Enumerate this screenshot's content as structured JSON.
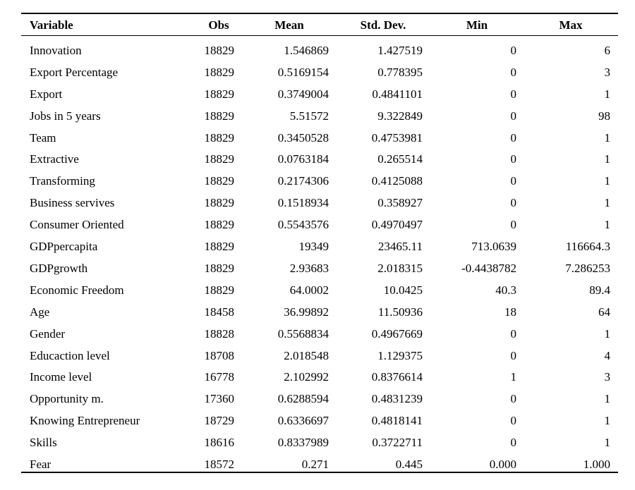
{
  "table": {
    "columns": [
      "Variable",
      "Obs",
      "Mean",
      "Std. Dev.",
      "Min",
      "Max"
    ],
    "rows": [
      [
        "Innovation",
        "18829",
        "1.546869",
        "1.427519",
        "0",
        "6"
      ],
      [
        "Export Percentage",
        "18829",
        "0.5169154",
        "0.778395",
        "0",
        "3"
      ],
      [
        "Export",
        "18829",
        "0.3749004",
        "0.4841101",
        "0",
        "1"
      ],
      [
        "Jobs in 5 years",
        "18829",
        "5.51572",
        "9.322849",
        "0",
        "98"
      ],
      [
        "Team",
        "18829",
        "0.3450528",
        "0.4753981",
        "0",
        "1"
      ],
      [
        "Extractive",
        "18829",
        "0.0763184",
        "0.265514",
        "0",
        "1"
      ],
      [
        "Transforming",
        "18829",
        "0.2174306",
        "0.4125088",
        "0",
        "1"
      ],
      [
        "Business servives",
        "18829",
        "0.1518934",
        "0.358927",
        "0",
        "1"
      ],
      [
        "Consumer Oriented",
        "18829",
        "0.5543576",
        "0.4970497",
        "0",
        "1"
      ],
      [
        "GDPpercapita",
        "18829",
        "19349",
        "23465.11",
        "713.0639",
        "116664.3"
      ],
      [
        "GDPgrowth",
        "18829",
        "2.93683",
        "2.018315",
        "-0.4438782",
        "7.286253"
      ],
      [
        "Economic Freedom",
        "18829",
        "64.0002",
        "10.0425",
        "40.3",
        "89.4"
      ],
      [
        "Age",
        "18458",
        "36.99892",
        "11.50936",
        "18",
        "64"
      ],
      [
        "Gender",
        "18828",
        "0.5568834",
        "0.4967669",
        "0",
        "1"
      ],
      [
        "Educaction level",
        "18708",
        "2.018548",
        "1.129375",
        "0",
        "4"
      ],
      [
        "Income level",
        "16778",
        "2.102992",
        "0.8376614",
        "1",
        "3"
      ],
      [
        "Opportunity m.",
        "17360",
        "0.6288594",
        "0.4831239",
        "0",
        "1"
      ],
      [
        "Knowing Entrepreneur",
        "18729",
        "0.6336697",
        "0.4818141",
        "0",
        "1"
      ],
      [
        "Skills",
        "18616",
        "0.8337989",
        "0.3722711",
        "0",
        "1"
      ],
      [
        "Fear",
        "18572",
        "0.271",
        "0.445",
        "0.000",
        "1.000"
      ]
    ]
  }
}
